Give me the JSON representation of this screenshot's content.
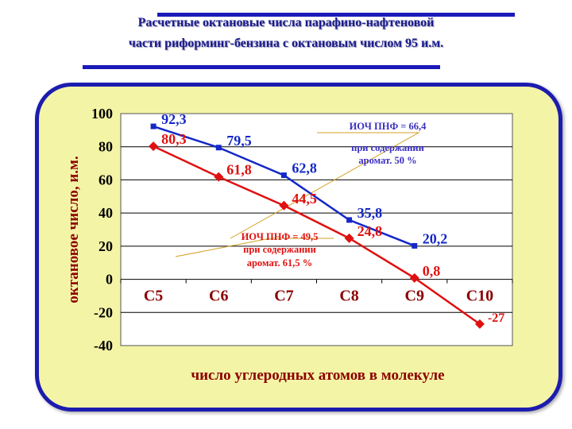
{
  "title": {
    "line1": "Расчетные октановые числа парафино-нафтеновой",
    "line2": "части риформинг-бензина с октановым числом 95 и.м."
  },
  "colors": {
    "blue_series": "#1428c8",
    "red_series": "#e01010",
    "axis_text": "#8b0000",
    "panel_bg": "#f4f4a6",
    "panel_border": "#1c1cb0"
  },
  "chart_data": {
    "type": "line",
    "categories": [
      "C5",
      "C6",
      "C7",
      "C8",
      "C9",
      "C10"
    ],
    "xlabel": "число углеродных атомов в молекуле",
    "ylabel": "октановое число, и.м.",
    "ylim": [
      -40,
      100
    ],
    "yticks": [
      "100",
      "80",
      "60",
      "40",
      "20",
      "0",
      "-20",
      "-40"
    ],
    "grid": true,
    "series": [
      {
        "values": [
          92.3,
          79.5,
          62.8,
          35.8,
          20.2,
          null
        ],
        "labels": [
          "92,3",
          "79,5",
          "62,8",
          "35,8",
          "20,2",
          ""
        ]
      },
      {
        "values": [
          80.3,
          61.8,
          44.5,
          24.8,
          0.8,
          -27
        ],
        "labels": [
          "80,3",
          "61,8",
          "44,5",
          "24,8",
          "0,8",
          "-27"
        ]
      }
    ],
    "annotations": [
      {
        "line1": "ИОЧ ПНФ = 66,4",
        "line2": "при содержании",
        "line3": "аромат. 50 %"
      },
      {
        "line1": "ИОЧ ПНФ =  49,5",
        "line2": "при содержании",
        "line3": "аромат. 61,5 %"
      }
    ]
  }
}
